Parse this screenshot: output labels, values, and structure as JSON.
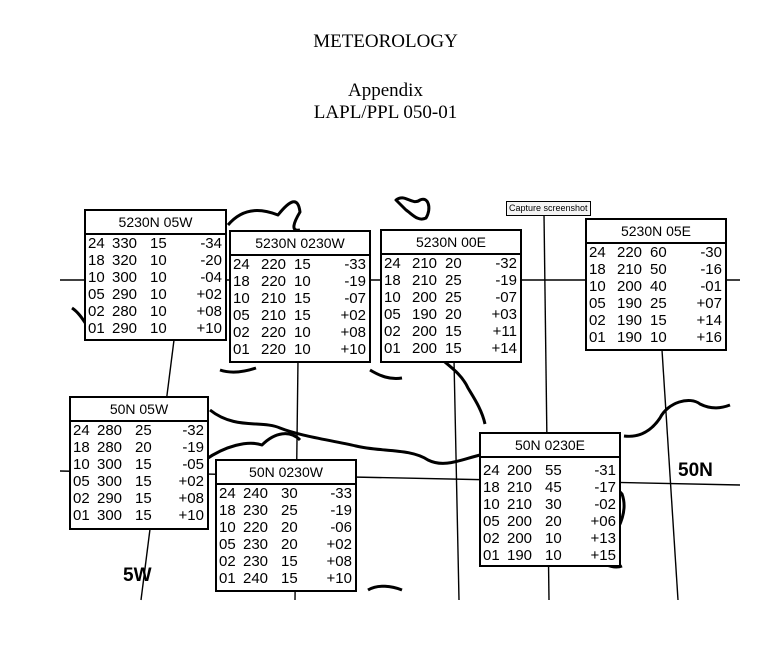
{
  "header": {
    "title": "METEOROLOGY",
    "appendix": "Appendix",
    "reference": "LAPL/PPL 050-01"
  },
  "capture_button": "Capture screenshot",
  "map_labels": {
    "lat_50n": "50N",
    "lon_5w": "5W"
  },
  "wind_boxes": [
    {
      "id": "5230n-05w",
      "title": "5230N 05W",
      "rows": [
        [
          "24",
          "330",
          "15",
          "-34"
        ],
        [
          "18",
          "320",
          "10",
          "-20"
        ],
        [
          "10",
          "300",
          "10",
          "-04"
        ],
        [
          "05",
          "290",
          "10",
          "+02"
        ],
        [
          "02",
          "280",
          "10",
          "+08"
        ],
        [
          "01",
          "290",
          "10",
          "+10"
        ]
      ]
    },
    {
      "id": "5230n-0230w",
      "title": "5230N 0230W",
      "rows": [
        [
          "24",
          "220",
          "15",
          "-33"
        ],
        [
          "18",
          "220",
          "10",
          "-19"
        ],
        [
          "10",
          "210",
          "15",
          "-07"
        ],
        [
          "05",
          "210",
          "15",
          "+02"
        ],
        [
          "02",
          "220",
          "10",
          "+08"
        ],
        [
          "01",
          "220",
          "10",
          "+10"
        ]
      ]
    },
    {
      "id": "5230n-00e",
      "title": "5230N 00E",
      "rows": [
        [
          "24",
          "210",
          "20",
          "-32"
        ],
        [
          "18",
          "210",
          "25",
          "-19"
        ],
        [
          "10",
          "200",
          "25",
          "-07"
        ],
        [
          "05",
          "190",
          "20",
          "+03"
        ],
        [
          "02",
          "200",
          "15",
          "+11"
        ],
        [
          "01",
          "200",
          "15",
          "+14"
        ]
      ]
    },
    {
      "id": "5230n-05e",
      "title": "5230N 05E",
      "rows": [
        [
          "24",
          "220",
          "60",
          "-30"
        ],
        [
          "18",
          "210",
          "50",
          "-16"
        ],
        [
          "10",
          "200",
          "40",
          "-01"
        ],
        [
          "05",
          "190",
          "25",
          "+07"
        ],
        [
          "02",
          "190",
          "15",
          "+14"
        ],
        [
          "01",
          "190",
          "10",
          "+16"
        ]
      ]
    },
    {
      "id": "50n-05w",
      "title": "50N 05W",
      "rows": [
        [
          "24",
          "280",
          "25",
          "-32"
        ],
        [
          "18",
          "280",
          "20",
          "-19"
        ],
        [
          "10",
          "300",
          "15",
          "-05"
        ],
        [
          "05",
          "300",
          "15",
          "+02"
        ],
        [
          "02",
          "290",
          "15",
          "+08"
        ],
        [
          "01",
          "300",
          "15",
          "+10"
        ]
      ]
    },
    {
      "id": "50n-0230w",
      "title": "50N 0230W",
      "rows": [
        [
          "24",
          "240",
          "30",
          "-33"
        ],
        [
          "18",
          "230",
          "25",
          "-19"
        ],
        [
          "10",
          "220",
          "20",
          "-06"
        ],
        [
          "05",
          "230",
          "20",
          "+02"
        ],
        [
          "02",
          "230",
          "15",
          "+08"
        ],
        [
          "01",
          "240",
          "15",
          "+10"
        ]
      ]
    },
    {
      "id": "50n-0230e",
      "title": "50N 0230E",
      "rows": [
        [
          "24",
          "200",
          "55",
          "-31"
        ],
        [
          "18",
          "210",
          "45",
          "-17"
        ],
        [
          "10",
          "210",
          "30",
          "-02"
        ],
        [
          "05",
          "200",
          "20",
          "+06"
        ],
        [
          "02",
          "200",
          "10",
          "+13"
        ],
        [
          "01",
          "190",
          "10",
          "+15"
        ]
      ]
    }
  ]
}
